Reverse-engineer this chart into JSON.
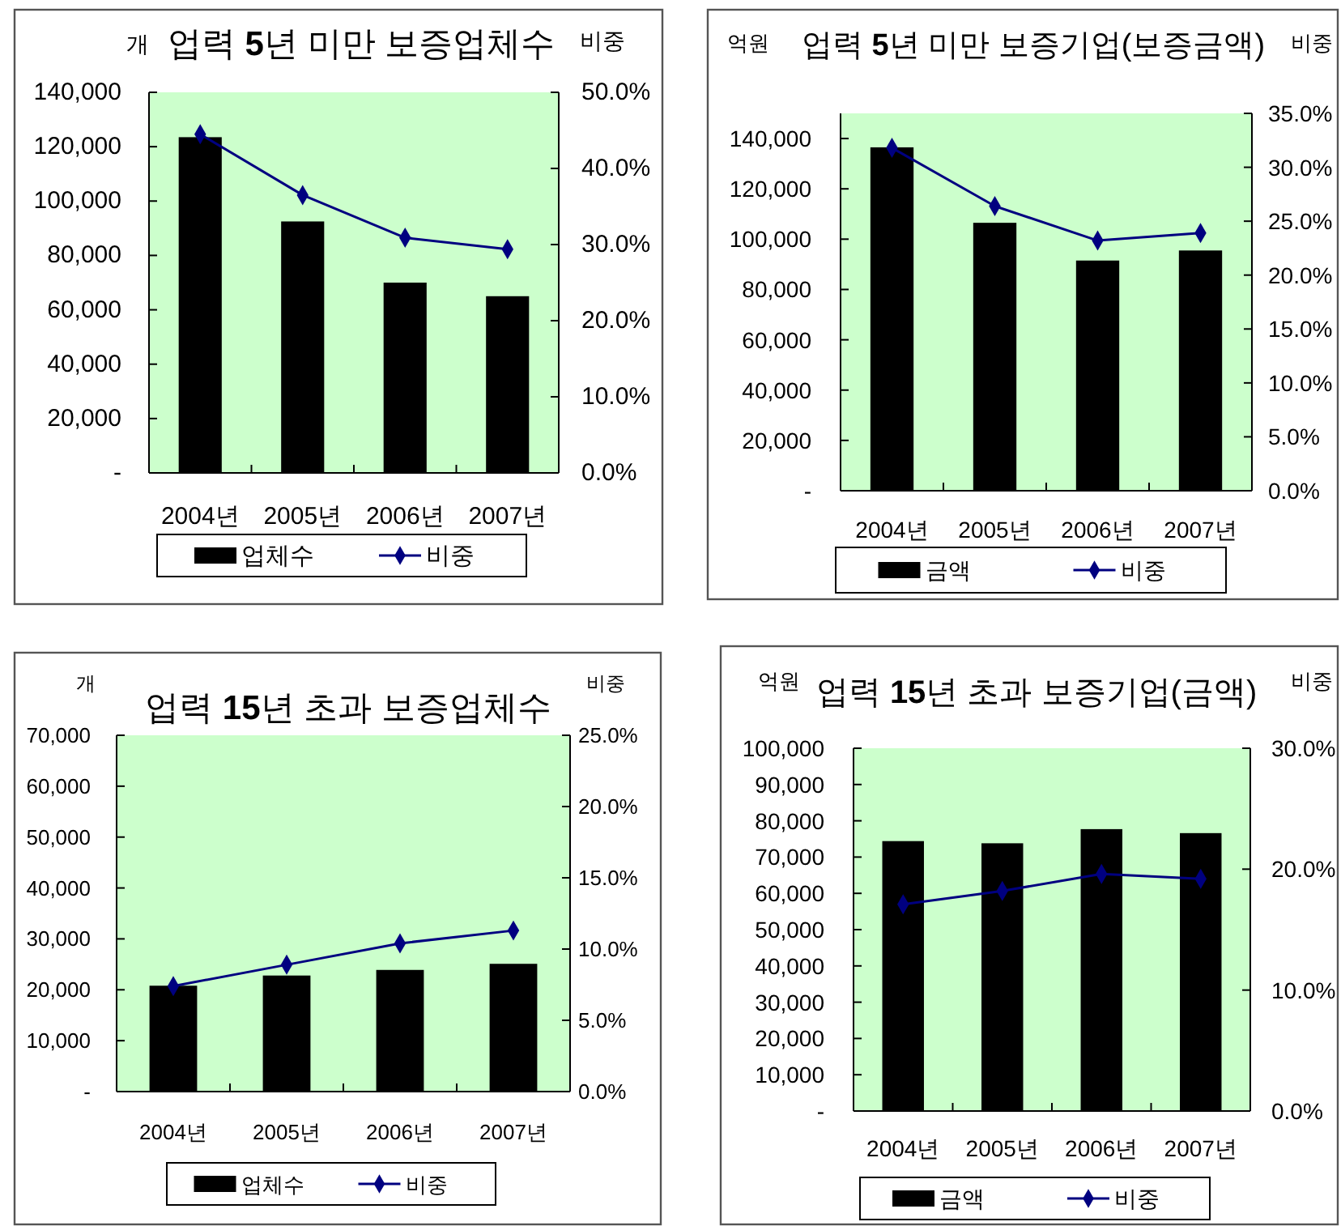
{
  "chart_data": [
    {
      "type": "bar",
      "title": "업력 5년 미만 보증업체수",
      "ylabel": "개",
      "y2label": "비중",
      "categories": [
        "2004년",
        "2005년",
        "2006년",
        "2007년"
      ],
      "series": [
        {
          "name": "업체수",
          "color": "#000000",
          "values": [
            123500,
            92500,
            70000,
            65000
          ]
        },
        {
          "name": "비중",
          "type": "line",
          "axis": "y2",
          "color": "#000080",
          "values": [
            44.5,
            36.5,
            30.9,
            29.4
          ]
        }
      ],
      "ylim": [
        0,
        140000
      ],
      "yticks": [
        {
          "value": 0,
          "label": "-"
        },
        {
          "value": 20000,
          "label": "20,000"
        },
        {
          "value": 40000,
          "label": "40,000"
        },
        {
          "value": 60000,
          "label": "60,000"
        },
        {
          "value": 80000,
          "label": "80,000"
        },
        {
          "value": 100000,
          "label": "100,000"
        },
        {
          "value": 120000,
          "label": "120,000"
        },
        {
          "value": 140000,
          "label": "140,000"
        }
      ],
      "y2lim": [
        0,
        50
      ],
      "y2ticks": [
        {
          "value": 0,
          "label": "0.0%"
        },
        {
          "value": 10,
          "label": "10.0%"
        },
        {
          "value": 20,
          "label": "20.0%"
        },
        {
          "value": 30,
          "label": "30.0%"
        },
        {
          "value": 40,
          "label": "40.0%"
        },
        {
          "value": 50,
          "label": "50.0%"
        }
      ],
      "legend": "bottom",
      "marker": "diamond"
    },
    {
      "type": "bar",
      "title": "업력 5년 미만 보증기업(보증금액)",
      "ylabel": "억원",
      "y2label": "비중",
      "categories": [
        "2004년",
        "2005년",
        "2006년",
        "2007년"
      ],
      "series": [
        {
          "name": "금액",
          "color": "#000000",
          "values": [
            136500,
            106500,
            91500,
            95500
          ]
        },
        {
          "name": "비중",
          "type": "line",
          "axis": "y2",
          "color": "#000080",
          "values": [
            31.8,
            26.4,
            23.2,
            23.9
          ]
        }
      ],
      "ylim": [
        0,
        150000
      ],
      "yticks": [
        {
          "value": 0,
          "label": "-"
        },
        {
          "value": 20000,
          "label": "20,000"
        },
        {
          "value": 40000,
          "label": "40,000"
        },
        {
          "value": 60000,
          "label": "60,000"
        },
        {
          "value": 80000,
          "label": "80,000"
        },
        {
          "value": 100000,
          "label": "100,000"
        },
        {
          "value": 120000,
          "label": "120,000"
        },
        {
          "value": 140000,
          "label": "140,000"
        }
      ],
      "y2lim": [
        0,
        35
      ],
      "y2ticks": [
        {
          "value": 0,
          "label": "0.0%"
        },
        {
          "value": 5,
          "label": "5.0%"
        },
        {
          "value": 10,
          "label": "10.0%"
        },
        {
          "value": 15,
          "label": "15.0%"
        },
        {
          "value": 20,
          "label": "20.0%"
        },
        {
          "value": 25,
          "label": "25.0%"
        },
        {
          "value": 30,
          "label": "30.0%"
        },
        {
          "value": 35,
          "label": "35.0%"
        }
      ],
      "legend": "bottom",
      "marker": "diamond"
    },
    {
      "type": "bar",
      "title": "업력 15년 초과 보증업체수",
      "ylabel": "개",
      "y2label": "비중",
      "categories": [
        "2004년",
        "2005년",
        "2006년",
        "2007년"
      ],
      "series": [
        {
          "name": "업체수",
          "color": "#000000",
          "values": [
            20800,
            22800,
            23900,
            25100
          ]
        },
        {
          "name": "비중",
          "type": "line",
          "axis": "y2",
          "color": "#000080",
          "values": [
            7.4,
            8.9,
            10.4,
            11.3
          ]
        }
      ],
      "ylim": [
        0,
        70000
      ],
      "yticks": [
        {
          "value": 0,
          "label": "-"
        },
        {
          "value": 10000,
          "label": "10,000"
        },
        {
          "value": 20000,
          "label": "20,000"
        },
        {
          "value": 30000,
          "label": "30,000"
        },
        {
          "value": 40000,
          "label": "40,000"
        },
        {
          "value": 50000,
          "label": "50,000"
        },
        {
          "value": 60000,
          "label": "60,000"
        },
        {
          "value": 70000,
          "label": "70,000"
        }
      ],
      "y2lim": [
        0,
        25
      ],
      "y2ticks": [
        {
          "value": 0,
          "label": "0.0%"
        },
        {
          "value": 5,
          "label": "5.0%"
        },
        {
          "value": 10,
          "label": "10.0%"
        },
        {
          "value": 15,
          "label": "15.0%"
        },
        {
          "value": 20,
          "label": "20.0%"
        },
        {
          "value": 25,
          "label": "25.0%"
        }
      ],
      "legend": "bottom",
      "marker": "diamond"
    },
    {
      "type": "bar",
      "title": "업력 15년 초과 보증기업(금액)",
      "ylabel": "억원",
      "y2label": "비중",
      "categories": [
        "2004년",
        "2005년",
        "2006년",
        "2007년"
      ],
      "series": [
        {
          "name": "금액",
          "color": "#000000",
          "values": [
            74400,
            73800,
            77700,
            76600
          ]
        },
        {
          "name": "비중",
          "type": "line",
          "axis": "y2",
          "color": "#000080",
          "values": [
            17.1,
            18.2,
            19.6,
            19.2
          ]
        }
      ],
      "ylim": [
        0,
        100000
      ],
      "yticks": [
        {
          "value": 0,
          "label": "-"
        },
        {
          "value": 10000,
          "label": "10,000"
        },
        {
          "value": 20000,
          "label": "20,000"
        },
        {
          "value": 30000,
          "label": "30,000"
        },
        {
          "value": 40000,
          "label": "40,000"
        },
        {
          "value": 50000,
          "label": "50,000"
        },
        {
          "value": 60000,
          "label": "60,000"
        },
        {
          "value": 70000,
          "label": "70,000"
        },
        {
          "value": 80000,
          "label": "80,000"
        },
        {
          "value": 90000,
          "label": "90,000"
        },
        {
          "value": 100000,
          "label": "100,000"
        }
      ],
      "y2lim": [
        0,
        30
      ],
      "y2ticks": [
        {
          "value": 0,
          "label": "0.0%"
        },
        {
          "value": 10,
          "label": "10.0%"
        },
        {
          "value": 20,
          "label": "20.0%"
        },
        {
          "value": 30,
          "label": "30.0%"
        }
      ],
      "legend": "bottom",
      "marker": "diamond"
    }
  ]
}
